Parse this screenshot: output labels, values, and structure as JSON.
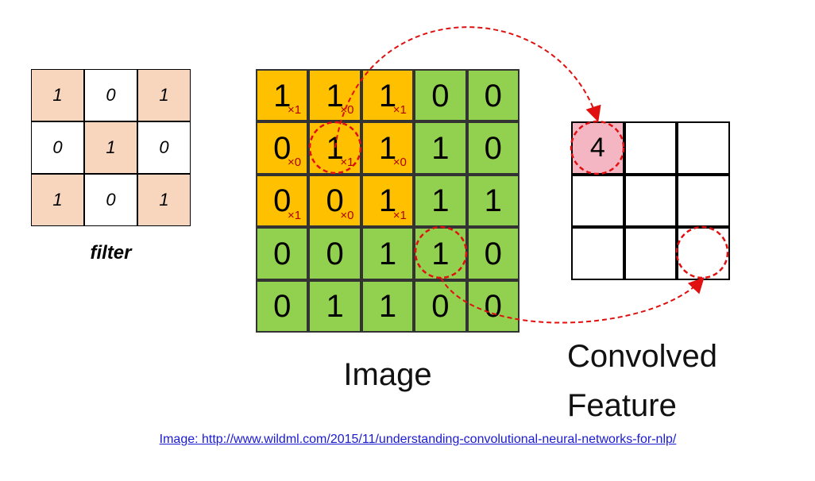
{
  "filter": {
    "title": "filter",
    "cells": [
      "1",
      "0",
      "1",
      "0",
      "1",
      "0",
      "1",
      "0",
      "1"
    ],
    "highlight_color": "#f8d5bd"
  },
  "image": {
    "title": "Image",
    "cells": [
      "1",
      "1",
      "1",
      "0",
      "0",
      "0",
      "1",
      "1",
      "1",
      "0",
      "0",
      "0",
      "1",
      "1",
      "1",
      "0",
      "0",
      "1",
      "1",
      "0",
      "0",
      "1",
      "1",
      "0",
      "0"
    ],
    "receptive_weights": [
      "×1",
      "×0",
      "×1",
      "×0",
      "×1",
      "×0",
      "×1",
      "×0",
      "×1"
    ],
    "orange_color": "#ffc000",
    "green_color": "#92d050"
  },
  "convolved": {
    "title_line1": "Convolved",
    "title_line2": "Feature",
    "first_value": "4",
    "highlight_color": "#f4b6c2"
  },
  "caption": "Image: http://www.wildml.com/2015/11/understanding-convolutional-neural-networks-for-nlp/",
  "annotation_color": "#e01010"
}
